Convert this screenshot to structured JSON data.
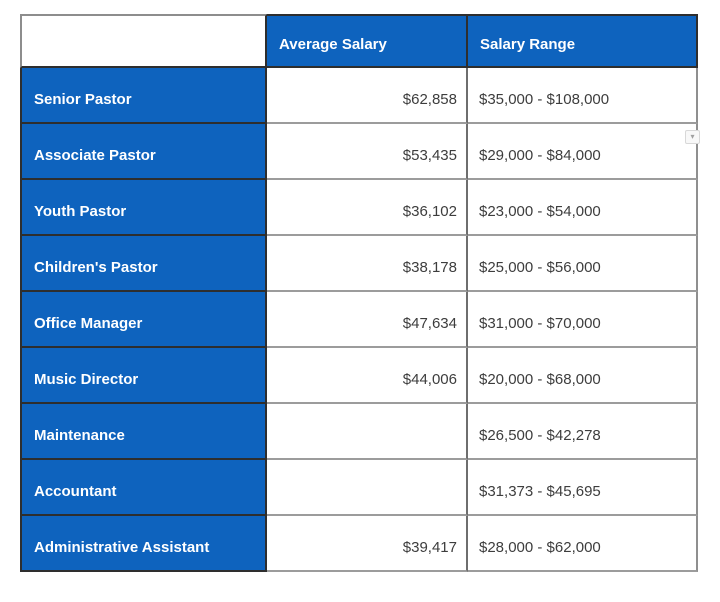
{
  "chart_data": {
    "type": "table",
    "columns": [
      "",
      "Average Salary",
      "Salary Range"
    ],
    "rows": [
      [
        "Senior Pastor",
        "$62,858",
        "$35,000 - $108,000"
      ],
      [
        "Associate Pastor",
        "$53,435",
        "$29,000 - $84,000"
      ],
      [
        "Youth Pastor",
        "$36,102",
        "$23,000 - $54,000"
      ],
      [
        "Children's Pastor",
        "$38,178",
        "$25,000 - $56,000"
      ],
      [
        "Office Manager",
        "$47,634",
        "$31,000 - $70,000"
      ],
      [
        "Music Director",
        "$44,006",
        "$20,000 - $68,000"
      ],
      [
        "Maintenance",
        "",
        "$26,500 - $42,278"
      ],
      [
        "Accountant",
        "",
        "$31,373 - $45,695"
      ],
      [
        "Administrative Assistant",
        "$39,417",
        "$28,000 - $62,000"
      ]
    ],
    "layout": {
      "header_fill": "#0e63be",
      "label_column_fill": "#0e63be",
      "header_text_color": "#ffffff",
      "value_text_color": "#3d3d3d",
      "dark_grid_color": "#2e2e2e",
      "light_grid_color": "#9c9c9c"
    }
  },
  "widgets": {
    "dropdown_hint_glyph": "▾"
  }
}
